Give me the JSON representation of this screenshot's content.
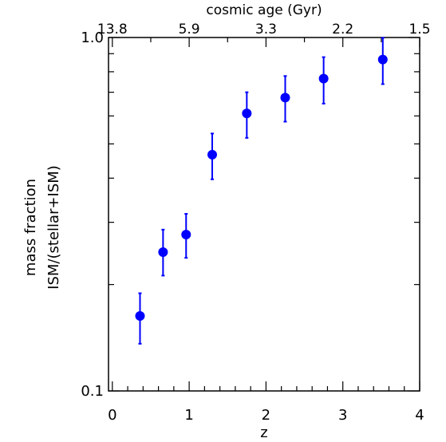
{
  "chart_data": {
    "type": "scatter",
    "xlabel": "z",
    "ylabel_lines": [
      "mass fraction",
      "ISM/(stellar+ISM)"
    ],
    "top_axis_label": "cosmic age (Gyr)",
    "xlim": [
      -0.05,
      4.0
    ],
    "ylim": [
      0.1,
      1.0
    ],
    "y_scale": "log",
    "grid": false,
    "x_ticks": [
      {
        "value": 0,
        "label": "0"
      },
      {
        "value": 1,
        "label": "1"
      },
      {
        "value": 2,
        "label": "2"
      },
      {
        "value": 3,
        "label": "3"
      },
      {
        "value": 4,
        "label": "4"
      }
    ],
    "y_ticks": [
      {
        "value": 0.1,
        "label": "0.1"
      },
      {
        "value": 1.0,
        "label": "1.0"
      }
    ],
    "top_ticks": [
      {
        "z": 0.0,
        "label": "13.8"
      },
      {
        "z": 1.0,
        "label": "5.9"
      },
      {
        "z": 2.0,
        "label": "3.3"
      },
      {
        "z": 3.0,
        "label": "2.2"
      },
      {
        "z": 4.0,
        "label": "1.5"
      }
    ],
    "series": [
      {
        "color": "#0000ff",
        "points": [
          {
            "x": 0.36,
            "y": 0.163,
            "y_low": 0.136,
            "y_high": 0.189
          },
          {
            "x": 0.66,
            "y": 0.247,
            "y_low": 0.212,
            "y_high": 0.286
          },
          {
            "x": 0.96,
            "y": 0.277,
            "y_low": 0.238,
            "y_high": 0.317
          },
          {
            "x": 1.3,
            "y": 0.466,
            "y_low": 0.397,
            "y_high": 0.535
          },
          {
            "x": 1.75,
            "y": 0.61,
            "y_low": 0.52,
            "y_high": 0.7
          },
          {
            "x": 2.25,
            "y": 0.676,
            "y_low": 0.578,
            "y_high": 0.778
          },
          {
            "x": 2.75,
            "y": 0.765,
            "y_low": 0.65,
            "y_high": 0.88
          },
          {
            "x": 3.52,
            "y": 0.866,
            "y_low": 0.738,
            "y_high": 0.998
          }
        ]
      }
    ]
  }
}
